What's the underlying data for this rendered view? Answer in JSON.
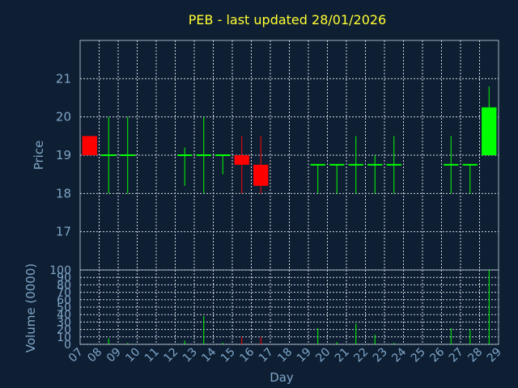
{
  "chart_data": {
    "type": "candlestick",
    "title": "PEB - last updated 28/01/2026",
    "xlabel": "Day",
    "price_panel": {
      "ylabel": "Price",
      "ylim": [
        16,
        22
      ],
      "yticks": [
        17,
        18,
        19,
        20,
        21
      ]
    },
    "volume_panel": {
      "ylabel": "Volume (0000)",
      "ylim": [
        0,
        100
      ],
      "yticks": [
        0,
        10,
        20,
        30,
        40,
        50,
        60,
        70,
        80,
        90,
        100
      ]
    },
    "x_tick_labels": [
      "07",
      "08",
      "09",
      "10",
      "11",
      "12",
      "13",
      "14",
      "15",
      "16",
      "17",
      "18",
      "19",
      "20",
      "21",
      "22",
      "23",
      "24",
      "25",
      "26",
      "27",
      "28",
      "29"
    ],
    "grid": true,
    "colors": {
      "up": "#00ff00",
      "down": "#ff0000",
      "background": "#0f1f33",
      "grid": "#d0d8e0",
      "title": "#ffff33",
      "axis_text": "#7ea6c8"
    },
    "candles": [
      {
        "day": "07",
        "open": 19.5,
        "high": 19.5,
        "low": 19.0,
        "close": 19.0,
        "volume": 0
      },
      {
        "day": "08",
        "open": 19.0,
        "high": 20.0,
        "low": 18.0,
        "close": 19.0,
        "volume": 8
      },
      {
        "day": "09",
        "open": 19.0,
        "high": 20.0,
        "low": 18.0,
        "close": 19.0,
        "volume": 2
      },
      {
        "day": "12",
        "open": 19.0,
        "high": 19.2,
        "low": 18.2,
        "close": 19.0,
        "volume": 5
      },
      {
        "day": "13",
        "open": 19.0,
        "high": 20.0,
        "low": 18.0,
        "close": 19.0,
        "volume": 38
      },
      {
        "day": "14",
        "open": 19.0,
        "high": 19.0,
        "low": 18.5,
        "close": 19.0,
        "volume": 2
      },
      {
        "day": "15",
        "open": 19.0,
        "high": 19.5,
        "low": 18.0,
        "close": 18.75,
        "volume": 10
      },
      {
        "day": "16",
        "open": 18.75,
        "high": 19.5,
        "low": 18.0,
        "close": 18.2,
        "volume": 10
      },
      {
        "day": "19",
        "open": 18.75,
        "high": 18.75,
        "low": 18.0,
        "close": 18.75,
        "volume": 22
      },
      {
        "day": "20",
        "open": 18.75,
        "high": 18.75,
        "low": 18.0,
        "close": 18.75,
        "volume": 3
      },
      {
        "day": "21",
        "open": 18.75,
        "high": 19.5,
        "low": 18.0,
        "close": 18.75,
        "volume": 28
      },
      {
        "day": "22",
        "open": 18.75,
        "high": 19.0,
        "low": 18.0,
        "close": 18.75,
        "volume": 13
      },
      {
        "day": "23",
        "open": 18.75,
        "high": 19.5,
        "low": 18.0,
        "close": 18.75,
        "volume": 2
      },
      {
        "day": "26",
        "open": 18.75,
        "high": 19.5,
        "low": 18.0,
        "close": 18.75,
        "volume": 22
      },
      {
        "day": "27",
        "open": 18.75,
        "high": 18.75,
        "low": 18.0,
        "close": 18.75,
        "volume": 20
      },
      {
        "day": "28",
        "open": 19.0,
        "high": 20.8,
        "low": 19.0,
        "close": 20.25,
        "volume": 100
      }
    ]
  }
}
